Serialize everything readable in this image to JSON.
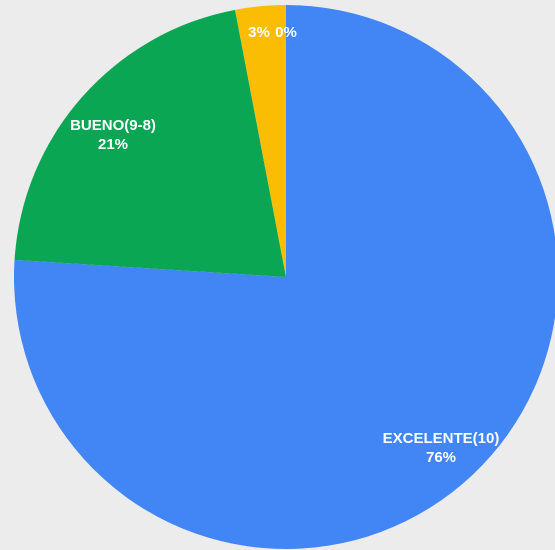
{
  "chart_data": {
    "type": "pie",
    "slices": [
      {
        "label": "EXCELENTE(10)",
        "value_text": "76%",
        "value": 76,
        "color": "#4285f4"
      },
      {
        "label": "BUENO(9-8)",
        "value_text": "21%",
        "value": 21,
        "color": "#0aa653"
      },
      {
        "label": "",
        "value_text": "3%",
        "value": 3,
        "color": "#fbbc04"
      },
      {
        "label": "",
        "value_text": "0%",
        "value": 0,
        "color": "#db4437"
      }
    ],
    "start_angle_deg": 0,
    "direction": "clockwise"
  }
}
